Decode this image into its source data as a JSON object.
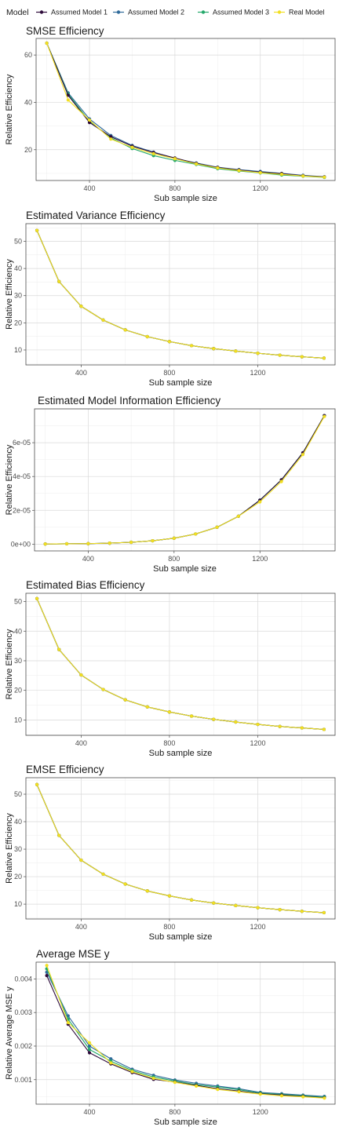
{
  "legend": {
    "title": "Model",
    "items": [
      {
        "name": "Assumed Model 1",
        "color": "#2d0a3a"
      },
      {
        "name": "Assumed Model 2",
        "color": "#2f6a9a"
      },
      {
        "name": "Assumed Model 3",
        "color": "#23a86a"
      },
      {
        "name": "Real Model",
        "color": "#f2df21"
      }
    ]
  },
  "chart_data": [
    {
      "type": "line",
      "title": "SMSE Efficiency",
      "xlabel": "Sub sample size",
      "ylabel": "Relative Efficiency",
      "x": [
        200,
        300,
        400,
        500,
        600,
        700,
        800,
        900,
        1000,
        1100,
        1200,
        1300,
        1400,
        1500
      ],
      "xlim": [
        150,
        1550
      ],
      "ylim": [
        7,
        67
      ],
      "xticks": [
        400,
        800,
        1200
      ],
      "yticks": [
        20,
        40,
        60
      ],
      "ytick_labels": [
        "20",
        "40",
        "60"
      ],
      "series": [
        {
          "name": "Assumed Model 1",
          "values": [
            65,
            43,
            31.5,
            25.5,
            21.5,
            18.8,
            16.5,
            14.2,
            12.5,
            11.4,
            10.5,
            9.9,
            9.0,
            8.5
          ]
        },
        {
          "name": "Assumed Model 2",
          "values": [
            65,
            44,
            33,
            26,
            21.8,
            19.0,
            16.3,
            14.4,
            12.6,
            11.6,
            10.8,
            10.0,
            9.2,
            8.6
          ]
        },
        {
          "name": "Assumed Model 3",
          "values": [
            65,
            43.5,
            32,
            25,
            20.5,
            17.5,
            15.5,
            13.8,
            12.0,
            11.0,
            10.2,
            9.3,
            8.8,
            8.3
          ]
        },
        {
          "name": "Real Model",
          "values": [
            65,
            41,
            32.5,
            24.5,
            21.0,
            18.3,
            16.2,
            14.0,
            12.3,
            11.2,
            10.3,
            9.6,
            8.9,
            8.4
          ]
        }
      ]
    },
    {
      "type": "line",
      "title": "Estimated Variance Efficiency",
      "xlabel": "Sub sample size",
      "ylabel": "Relative Efficiency",
      "x": [
        200,
        300,
        400,
        500,
        600,
        700,
        800,
        900,
        1000,
        1100,
        1200,
        1300,
        1400,
        1500
      ],
      "xlim": [
        150,
        1550
      ],
      "ylim": [
        4.5,
        56.5
      ],
      "xticks": [
        400,
        800,
        1200
      ],
      "yticks": [
        10,
        20,
        30,
        40,
        50
      ],
      "ytick_labels": [
        "10",
        "20",
        "30",
        "40",
        "50"
      ],
      "series": [
        {
          "name": "Assumed Model 1",
          "values": [
            54,
            35.2,
            26.1,
            21.0,
            17.4,
            14.9,
            13.1,
            11.6,
            10.5,
            9.6,
            8.8,
            8.1,
            7.5,
            7.0
          ]
        },
        {
          "name": "Assumed Model 2",
          "values": [
            54,
            35.2,
            26.1,
            21.0,
            17.4,
            14.9,
            13.1,
            11.6,
            10.5,
            9.6,
            8.8,
            8.1,
            7.5,
            7.0
          ]
        },
        {
          "name": "Assumed Model 3",
          "values": [
            54,
            35.2,
            26.1,
            21.0,
            17.4,
            14.9,
            13.1,
            11.6,
            10.5,
            9.6,
            8.8,
            8.1,
            7.5,
            7.0
          ]
        },
        {
          "name": "Real Model",
          "values": [
            54,
            35.2,
            26.1,
            21.0,
            17.4,
            14.9,
            13.1,
            11.6,
            10.5,
            9.6,
            8.8,
            8.1,
            7.5,
            7.0
          ]
        }
      ]
    },
    {
      "type": "line",
      "title": "Estimated Model Information Efficiency",
      "xlabel": "Sub sample size",
      "ylabel": "Relative Efficiency",
      "x": [
        200,
        300,
        400,
        500,
        600,
        700,
        800,
        900,
        1000,
        1100,
        1200,
        1300,
        1400,
        1500
      ],
      "xlim": [
        150,
        1550
      ],
      "ylim": [
        -4e-06,
        8e-05
      ],
      "xticks": [
        400,
        800,
        1200
      ],
      "yticks": [
        0,
        2e-05,
        4e-05,
        6e-05
      ],
      "ytick_labels": [
        "0e+00",
        "2e-05",
        "4e-05",
        "6e-05"
      ],
      "series": [
        {
          "name": "Assumed Model 1",
          "values": [
            1e-07,
            2e-07,
            3e-07,
            6e-07,
            1.1e-06,
            2e-06,
            3.5e-06,
            6e-06,
            1e-05,
            1.65e-05,
            2.6e-05,
            3.8e-05,
            5.4e-05,
            7.6e-05
          ]
        },
        {
          "name": "Assumed Model 2",
          "values": [
            1e-07,
            2e-07,
            3e-07,
            6e-07,
            1.1e-06,
            2e-06,
            3.5e-06,
            6e-06,
            1e-05,
            1.65e-05,
            2.6e-05,
            3.8e-05,
            5.4e-05,
            7.6e-05
          ]
        },
        {
          "name": "Assumed Model 3",
          "values": [
            1e-07,
            2e-07,
            3e-07,
            6e-07,
            1.1e-06,
            2e-06,
            3.5e-06,
            6e-06,
            1e-05,
            1.65e-05,
            2.6e-05,
            3.8e-05,
            5.4e-05,
            7.6e-05
          ]
        },
        {
          "name": "Real Model",
          "values": [
            1e-07,
            2e-07,
            3e-07,
            6e-07,
            1.1e-06,
            2e-06,
            3.5e-06,
            6e-06,
            1e-05,
            1.65e-05,
            2.5e-05,
            3.7e-05,
            5.3e-05,
            7.55e-05
          ]
        }
      ]
    },
    {
      "type": "line",
      "title": "Estimated Bias Efficiency",
      "xlabel": "Sub sample size",
      "ylabel": "Relative Efficiency",
      "x": [
        200,
        300,
        400,
        500,
        600,
        700,
        800,
        900,
        1000,
        1100,
        1200,
        1300,
        1400,
        1500
      ],
      "xlim": [
        150,
        1550
      ],
      "ylim": [
        4.8,
        52.8
      ],
      "xticks": [
        400,
        800,
        1200
      ],
      "yticks": [
        10,
        20,
        30,
        40,
        50
      ],
      "ytick_labels": [
        "10",
        "20",
        "30",
        "40",
        "50"
      ],
      "series": [
        {
          "name": "Assumed Model 1",
          "values": [
            51,
            33.8,
            25.2,
            20.3,
            16.8,
            14.4,
            12.7,
            11.3,
            10.2,
            9.3,
            8.5,
            7.8,
            7.3,
            6.8
          ]
        },
        {
          "name": "Assumed Model 2",
          "values": [
            51,
            33.8,
            25.2,
            20.3,
            16.8,
            14.4,
            12.7,
            11.3,
            10.2,
            9.3,
            8.5,
            7.8,
            7.3,
            6.8
          ]
        },
        {
          "name": "Assumed Model 3",
          "values": [
            51,
            33.8,
            25.2,
            20.3,
            16.8,
            14.4,
            12.7,
            11.3,
            10.2,
            9.3,
            8.5,
            7.8,
            7.3,
            6.8
          ]
        },
        {
          "name": "Real Model",
          "values": [
            51,
            33.8,
            25.2,
            20.3,
            16.8,
            14.4,
            12.7,
            11.3,
            10.2,
            9.3,
            8.5,
            7.8,
            7.3,
            6.8
          ]
        }
      ]
    },
    {
      "type": "line",
      "title": "EMSE Efficiency",
      "xlabel": "Sub sample size",
      "ylabel": "Relative Efficiency",
      "x": [
        200,
        300,
        400,
        500,
        600,
        700,
        800,
        900,
        1000,
        1100,
        1200,
        1300,
        1400,
        1500
      ],
      "xlim": [
        150,
        1550
      ],
      "ylim": [
        4.6,
        56.0
      ],
      "xticks": [
        400,
        800,
        1200
      ],
      "yticks": [
        10,
        20,
        30,
        40,
        50
      ],
      "ytick_labels": [
        "10",
        "20",
        "30",
        "40",
        "50"
      ],
      "series": [
        {
          "name": "Assumed Model 1",
          "values": [
            53.5,
            35.0,
            26.0,
            20.9,
            17.3,
            14.8,
            13.0,
            11.5,
            10.4,
            9.5,
            8.7,
            8.0,
            7.4,
            6.9
          ]
        },
        {
          "name": "Assumed Model 2",
          "values": [
            53.5,
            35.0,
            26.0,
            20.9,
            17.3,
            14.8,
            13.0,
            11.5,
            10.4,
            9.5,
            8.7,
            8.0,
            7.4,
            6.9
          ]
        },
        {
          "name": "Assumed Model 3",
          "values": [
            53.5,
            35.0,
            26.0,
            20.9,
            17.3,
            14.8,
            13.0,
            11.5,
            10.4,
            9.5,
            8.7,
            8.0,
            7.4,
            6.9
          ]
        },
        {
          "name": "Real Model",
          "values": [
            53.5,
            35.0,
            26.0,
            20.9,
            17.3,
            14.8,
            13.0,
            11.5,
            10.4,
            9.5,
            8.7,
            8.0,
            7.4,
            6.9
          ]
        }
      ]
    },
    {
      "type": "line",
      "title": "Average MSE y",
      "xlabel": "Sub sample size",
      "ylabel": "Relative Average MSE y",
      "x": [
        200,
        300,
        400,
        500,
        600,
        700,
        800,
        900,
        1000,
        1100,
        1200,
        1300,
        1400,
        1500
      ],
      "xlim": [
        150,
        1550
      ],
      "ylim": [
        0.00027,
        0.0045
      ],
      "xticks": [
        400,
        800,
        1200
      ],
      "yticks": [
        0.001,
        0.002,
        0.003,
        0.004
      ],
      "ytick_labels": [
        "0.001",
        "0.002",
        "0.003",
        "0.004"
      ],
      "series": [
        {
          "name": "Assumed Model 1",
          "values": [
            0.0041,
            0.00265,
            0.0018,
            0.00147,
            0.00121,
            0.00101,
            0.00093,
            0.00083,
            0.00073,
            0.00066,
            0.00058,
            0.00054,
            0.0005,
            0.00046
          ]
        },
        {
          "name": "Assumed Model 2",
          "values": [
            0.0042,
            0.0029,
            0.002,
            0.00162,
            0.00131,
            0.00113,
            0.00099,
            0.00089,
            0.00081,
            0.00073,
            0.00062,
            0.00058,
            0.00054,
            0.0005
          ]
        },
        {
          "name": "Assumed Model 3",
          "values": [
            0.0043,
            0.0028,
            0.0019,
            0.00155,
            0.00127,
            0.00108,
            0.00096,
            0.00085,
            0.00078,
            0.0007,
            0.0006,
            0.00056,
            0.00052,
            0.00048
          ]
        },
        {
          "name": "Real Model",
          "values": [
            0.0044,
            0.0027,
            0.0021,
            0.0015,
            0.00124,
            0.00104,
            0.00092,
            0.00081,
            0.00071,
            0.00064,
            0.00057,
            0.00052,
            0.00049,
            0.00045
          ]
        }
      ]
    }
  ]
}
